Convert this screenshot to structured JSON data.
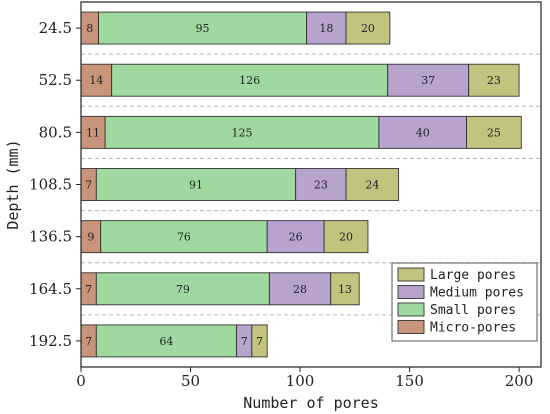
{
  "chart_data": {
    "type": "bar",
    "orientation": "horizontal",
    "stacked": true,
    "categories": [
      "24.5",
      "52.5",
      "80.5",
      "108.5",
      "136.5",
      "164.5",
      "192.5"
    ],
    "series": [
      {
        "name": "Micro-pores",
        "values": [
          8,
          14,
          11,
          7,
          9,
          7,
          7
        ],
        "color": "#c9957a"
      },
      {
        "name": "Small pores",
        "values": [
          95,
          126,
          125,
          91,
          76,
          79,
          64
        ],
        "color": "#9fd9a0"
      },
      {
        "name": "Medium pores",
        "values": [
          18,
          37,
          40,
          23,
          26,
          28,
          7
        ],
        "color": "#b8a3cf"
      },
      {
        "name": "Large pores",
        "values": [
          20,
          23,
          25,
          24,
          20,
          13,
          7
        ],
        "color": "#c3c37f"
      }
    ],
    "legend_order": [
      "Large pores",
      "Medium pores",
      "Small pores",
      "Micro-pores"
    ],
    "xlabel": "Number of pores",
    "ylabel": "Depth (mm)",
    "xlim": [
      0,
      210
    ],
    "xticks": [
      "0",
      "50",
      "100",
      "150",
      "200"
    ],
    "grid": "dashed horizontal separators between categories",
    "legend_position": "bottom-right"
  }
}
